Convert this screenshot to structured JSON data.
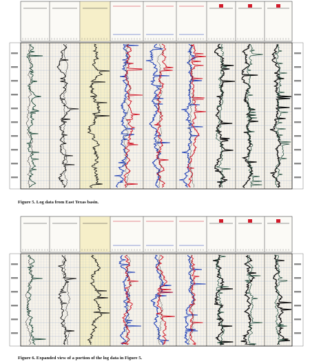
{
  "figure5": {
    "caption": "Figure 5. Log data from East Texas basin."
  },
  "figure6": {
    "caption": "Figure 6. Expanded view of a portion of the log data in Figure 5."
  },
  "colors": {
    "panel_yellow": "#f6efc9",
    "grid_blue": "#8fa7c9",
    "trace_black": "#111111",
    "trace_green": "#1f4a3a",
    "trace_red": "#d11a2a",
    "trace_blue": "#1f3fb6",
    "track_bg": "#f7f3ea"
  }
}
